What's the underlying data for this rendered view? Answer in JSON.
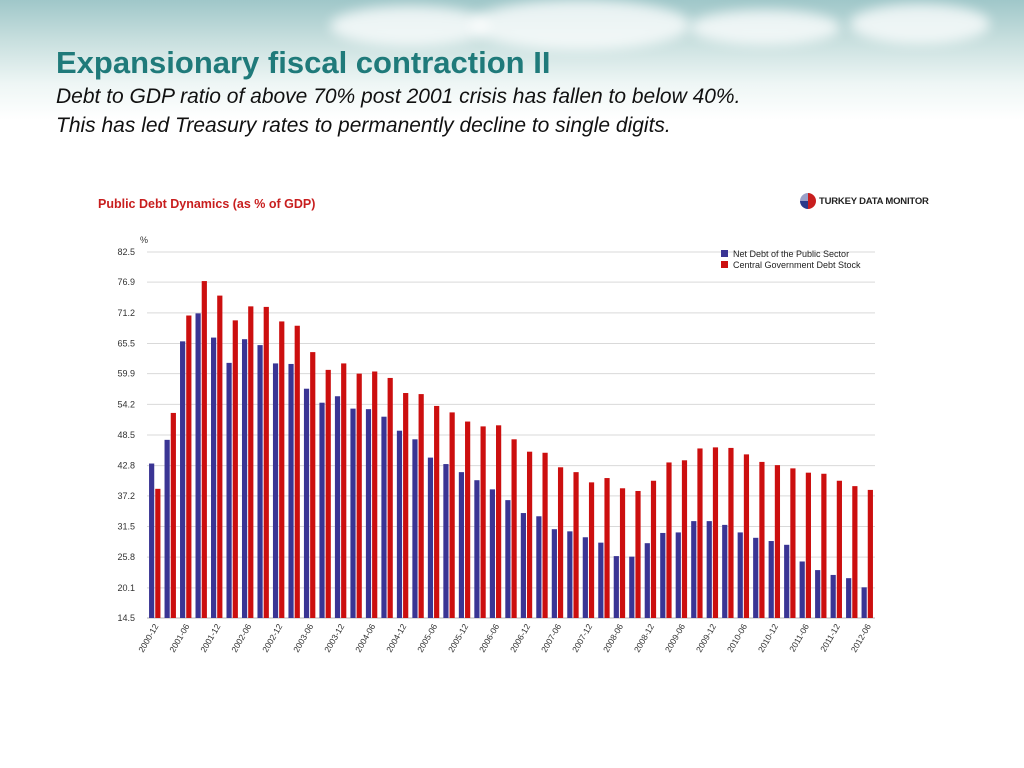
{
  "slide": {
    "title": "Expansionary fiscal contraction II",
    "subtitle_line1": "Debt to GDP ratio of above 70% post 2001 crisis has fallen to below 40%.",
    "subtitle_line2": "This has led Treasury rates to permanently decline to single digits."
  },
  "logo": {
    "text": "TURKEY DATA MONITOR",
    "icon": "turkey-data-monitor-logo"
  },
  "colors": {
    "title": "#1f7a7a",
    "series_net": "#3a3594",
    "series_central": "#cc0f0f",
    "chart_title": "#c81e1e"
  },
  "chart_data": {
    "type": "bar",
    "title": "Public Debt Dynamics (as % of GDP)",
    "ylabel": "%",
    "xlabel": "",
    "ylim": [
      14.5,
      82.5
    ],
    "yticks": [
      "82.5",
      "76.9",
      "71.2",
      "65.5",
      "59.9",
      "54.2",
      "48.5",
      "42.8",
      "37.2",
      "31.5",
      "25.8",
      "20.1",
      "14.5"
    ],
    "ytick_values": [
      82.5,
      76.9,
      71.2,
      65.5,
      59.9,
      54.2,
      48.5,
      42.8,
      37.2,
      31.5,
      25.8,
      20.1,
      14.5
    ],
    "grid": true,
    "legend_position": "top-right",
    "x_tick_labels": [
      "2000-12",
      "2001-06",
      "2001-12",
      "2002-06",
      "2002-12",
      "2003-06",
      "2003-12",
      "2004-06",
      "2004-12",
      "2005-06",
      "2005-12",
      "2006-06",
      "2006-12",
      "2007-06",
      "2007-12",
      "2008-06",
      "2008-12",
      "2009-06",
      "2009-12",
      "2010-06",
      "2010-12",
      "2011-06",
      "2011-12",
      "2012-06"
    ],
    "categories": [
      "2000-12",
      "2001-03",
      "2001-06",
      "2001-09",
      "2001-12",
      "2002-03",
      "2002-06",
      "2002-09",
      "2002-12",
      "2003-03",
      "2003-06",
      "2003-09",
      "2003-12",
      "2004-03",
      "2004-06",
      "2004-09",
      "2004-12",
      "2005-03",
      "2005-06",
      "2005-09",
      "2005-12",
      "2006-03",
      "2006-06",
      "2006-09",
      "2006-12",
      "2007-03",
      "2007-06",
      "2007-09",
      "2007-12",
      "2008-03",
      "2008-06",
      "2008-09",
      "2008-12",
      "2009-03",
      "2009-06",
      "2009-09",
      "2009-12",
      "2010-03",
      "2010-06",
      "2010-09",
      "2010-12",
      "2011-03",
      "2011-06",
      "2011-09",
      "2011-12",
      "2012-03",
      "2012-06"
    ],
    "series": [
      {
        "name": "Net Debt of the Public Sector",
        "values": [
          43.2,
          47.6,
          65.9,
          71.1,
          66.6,
          61.9,
          66.3,
          65.2,
          61.8,
          61.7,
          57.1,
          54.5,
          55.7,
          53.4,
          53.3,
          51.9,
          49.3,
          47.7,
          44.3,
          43.1,
          41.6,
          40.1,
          38.4,
          36.4,
          34.0,
          33.4,
          31.0,
          30.6,
          29.5,
          28.5,
          26.0,
          25.9,
          28.4,
          30.3,
          30.4,
          32.5,
          32.5,
          31.8,
          30.4,
          29.4,
          28.8,
          28.1,
          25.0,
          23.4,
          22.5,
          21.9,
          20.2
        ]
      },
      {
        "name": "Central Government Debt Stock",
        "values": [
          38.5,
          52.6,
          70.7,
          77.1,
          74.4,
          69.8,
          72.4,
          72.3,
          69.6,
          68.8,
          63.9,
          60.6,
          61.8,
          59.9,
          60.3,
          59.1,
          56.3,
          56.1,
          53.9,
          52.7,
          51.0,
          50.1,
          50.3,
          47.7,
          45.4,
          45.2,
          42.5,
          41.6,
          39.7,
          40.5,
          38.6,
          38.1,
          40.0,
          43.4,
          43.8,
          46.0,
          46.2,
          46.1,
          44.9,
          43.5,
          42.9,
          42.3,
          41.5,
          41.3,
          40.0,
          39.0,
          38.3
        ]
      }
    ]
  }
}
